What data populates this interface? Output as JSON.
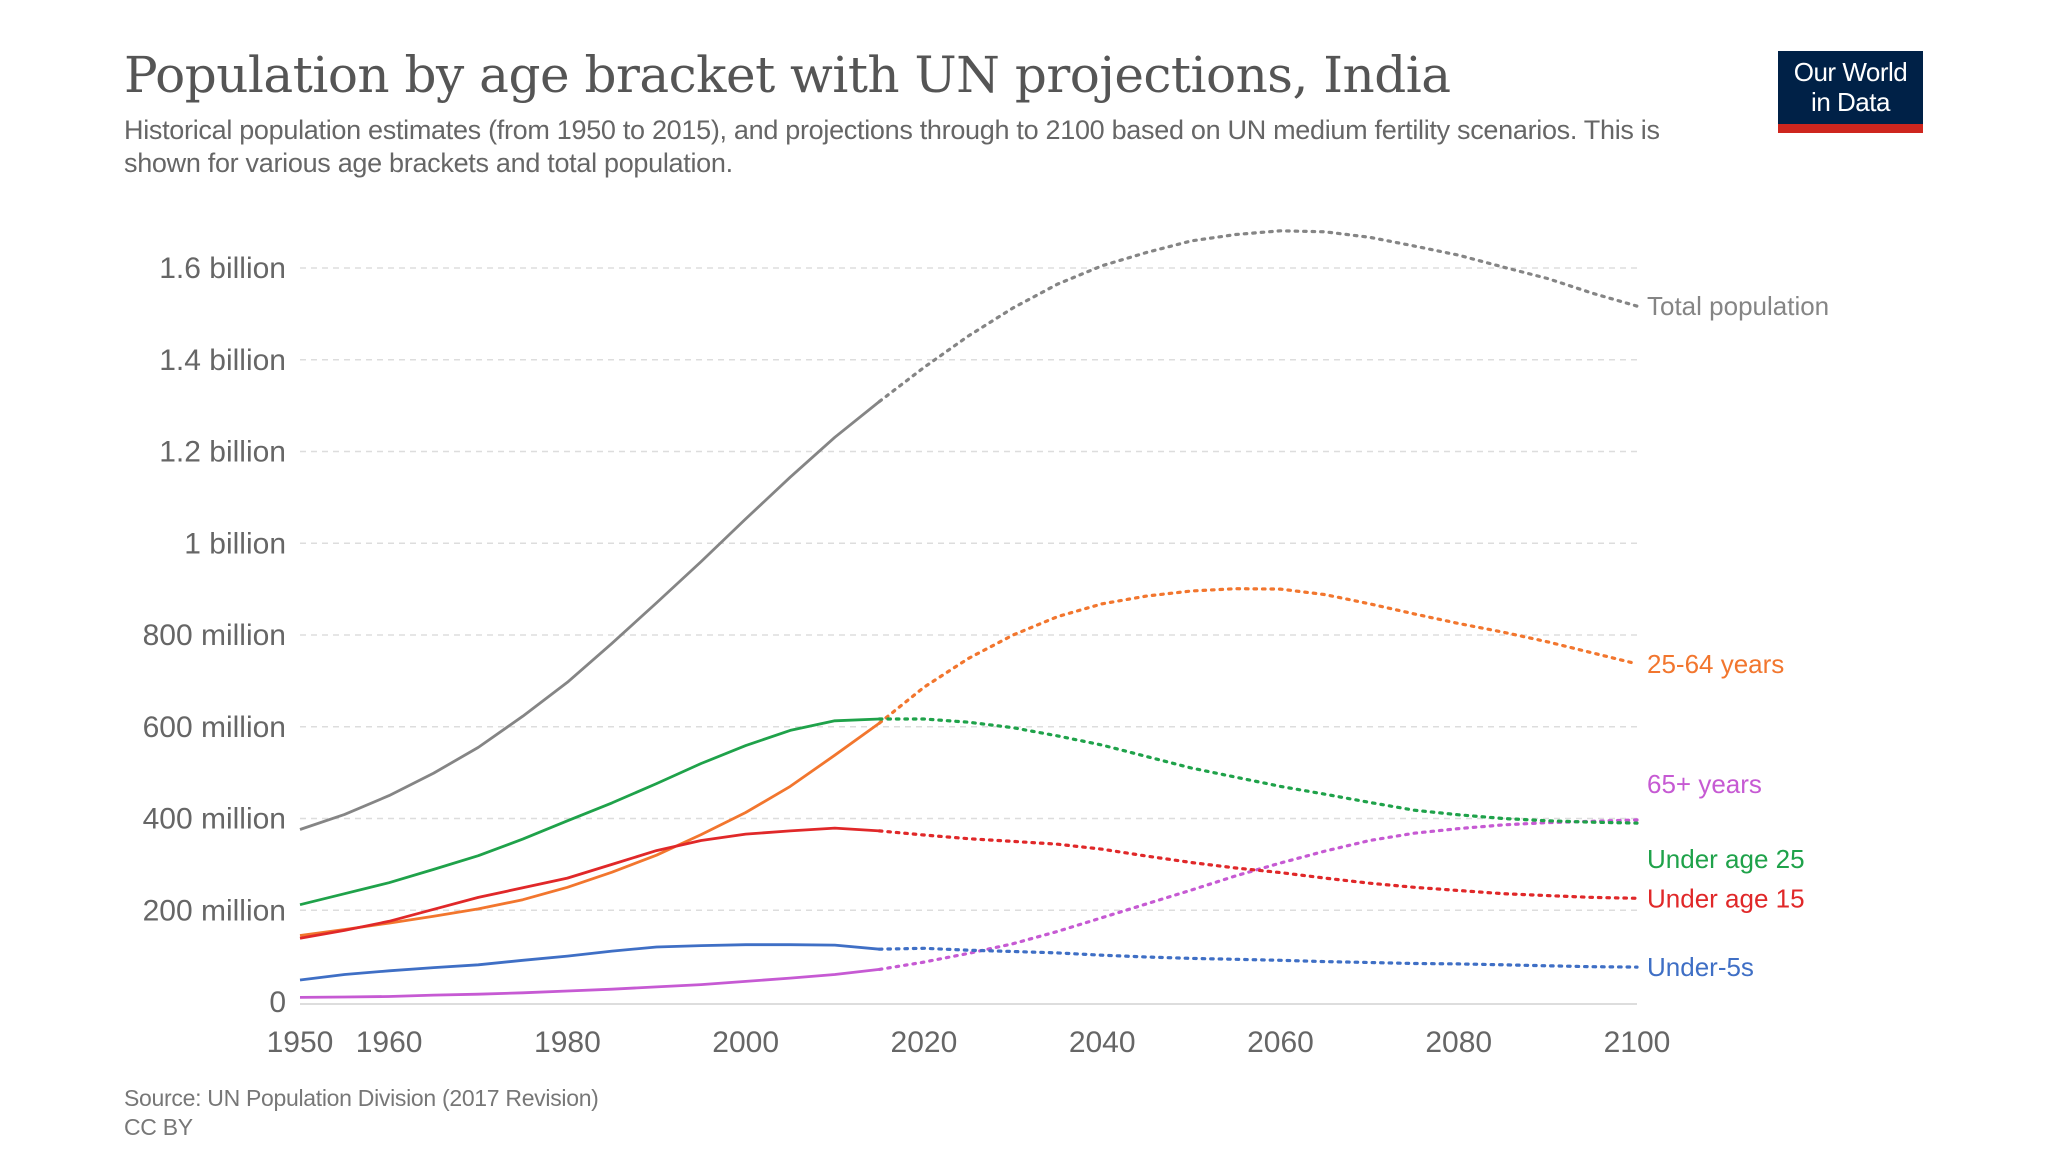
{
  "header": {
    "title": "Population by age bracket with UN projections, India",
    "subtitle": "Historical population estimates (from 1950 to 2015), and projections through to 2100 based on UN medium fertility scenarios. This is shown for various age brackets and total population."
  },
  "logo": {
    "line1": "Our World",
    "line2": "in Data",
    "bg_color": "#002147",
    "bar_color": "#ce261e"
  },
  "footer": {
    "source": "Source: UN Population Division (2017 Revision)",
    "license": "CC BY"
  },
  "chart_data": {
    "type": "line",
    "title": "Population by age bracket with UN projections, India",
    "xlabel": "",
    "ylabel": "",
    "xlim": [
      1950,
      2100
    ],
    "ylim": [
      0,
      1600000000
    ],
    "grid": "horizontal-dashed",
    "projection_start_year": 2015,
    "projection_style": "dotted",
    "legend": "right-end-labels",
    "x_ticks": [
      1950,
      1960,
      1980,
      2000,
      2020,
      2040,
      2060,
      2080,
      2100
    ],
    "y_ticks": [
      {
        "value": 0,
        "label": "0"
      },
      {
        "value": 200000000,
        "label": "200 million"
      },
      {
        "value": 400000000,
        "label": "400 million"
      },
      {
        "value": 600000000,
        "label": "600 million"
      },
      {
        "value": 800000000,
        "label": "800 million"
      },
      {
        "value": 1000000000,
        "label": "1 billion"
      },
      {
        "value": 1200000000,
        "label": "1.2 billion"
      },
      {
        "value": 1400000000,
        "label": "1.4 billion"
      },
      {
        "value": 1600000000,
        "label": "1.6 billion"
      }
    ],
    "x": [
      1950,
      1955,
      1960,
      1965,
      1970,
      1975,
      1980,
      1985,
      1990,
      1995,
      2000,
      2005,
      2010,
      2015,
      2020,
      2025,
      2030,
      2035,
      2040,
      2045,
      2050,
      2055,
      2060,
      2065,
      2070,
      2075,
      2080,
      2085,
      2090,
      2095,
      2100
    ],
    "series": [
      {
        "name": "Total population",
        "color": "#858585",
        "label_offset": 0,
        "values": [
          376,
          409,
          450,
          499,
          555,
          623,
          697,
          782,
          870,
          960,
          1053,
          1144,
          1231,
          1309,
          1383,
          1452,
          1513,
          1565,
          1605,
          1634,
          1659,
          1673,
          1681,
          1679,
          1667,
          1648,
          1628,
          1602,
          1577,
          1545,
          1517
        ]
      },
      {
        "name": "25-64 years",
        "color": "#f2762e",
        "label_offset": 0,
        "values": [
          145,
          158,
          172,
          187,
          203,
          223,
          250,
          283,
          320,
          365,
          413,
          470,
          538,
          608,
          686,
          749,
          800,
          840,
          868,
          885,
          896,
          901,
          900,
          888,
          868,
          846,
          825,
          806,
          785,
          761,
          737
        ]
      },
      {
        "name": "65+ years",
        "color": "#c65ad3",
        "label_offset": -36,
        "values": [
          10,
          11,
          12,
          15,
          17,
          20,
          24,
          28,
          33,
          38,
          45,
          52,
          60,
          71,
          87,
          106,
          127,
          154,
          184,
          214,
          244,
          275,
          303,
          329,
          352,
          368,
          378,
          386,
          391,
          394,
          397
        ]
      },
      {
        "name": "Under age 25",
        "color": "#1fa24a",
        "label_offset": 36,
        "values": [
          212,
          236,
          260,
          289,
          319,
          355,
          395,
          434,
          476,
          520,
          559,
          592,
          613,
          617,
          617,
          610,
          598,
          580,
          560,
          535,
          510,
          490,
          470,
          453,
          435,
          418,
          408,
          400,
          395,
          392,
          390
        ]
      },
      {
        "name": "Under age 15",
        "color": "#e02829",
        "label_offset": 0,
        "values": [
          139,
          156,
          176,
          202,
          228,
          249,
          270,
          300,
          330,
          352,
          366,
          373,
          379,
          373,
          364,
          356,
          350,
          344,
          333,
          318,
          304,
          292,
          282,
          270,
          259,
          250,
          243,
          236,
          232,
          228,
          226
        ]
      },
      {
        "name": "Under-5s",
        "color": "#3f6fc5",
        "label_offset": 0,
        "values": [
          48,
          60,
          68,
          75,
          81,
          91,
          100,
          111,
          120,
          123,
          125,
          125,
          124,
          115,
          117,
          113,
          110,
          107,
          102,
          98,
          95,
          93,
          91,
          88,
          86,
          84,
          83,
          81,
          79,
          77,
          76
        ]
      }
    ]
  }
}
